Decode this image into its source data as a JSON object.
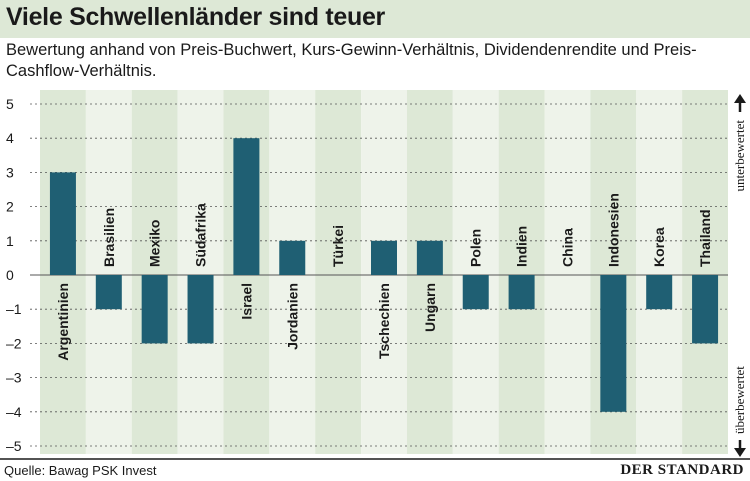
{
  "header": {
    "title": "Viele Schwellenländer sind teuer",
    "subtitle": "Bewertung anhand von Preis-Buchwert, Kurs-Gewinn-Verhältnis, Dividendenrendite und Preis-Cashflow-Verhältnis."
  },
  "footer": {
    "source": "Quelle: Bawag PSK Invest",
    "logo": "DER STANDARD"
  },
  "colors": {
    "bar": "#1f5f73",
    "band_dark": "#dde8d6",
    "band_light": "#eef3ea",
    "title_bg": "#dde8d6"
  },
  "chart_data": {
    "type": "bar",
    "categories": [
      "Argentinien",
      "Brasilien",
      "Mexiko",
      "Südafrika",
      "Israel",
      "Jordanien",
      "Türkei",
      "Tschechien",
      "Ungarn",
      "Polen",
      "Indien",
      "China",
      "Indonesien",
      "Korea",
      "Thailand"
    ],
    "values": [
      3,
      -1,
      -2,
      -2,
      4,
      1,
      0,
      1,
      1,
      -1,
      -1,
      0,
      -4,
      -1,
      -2
    ],
    "ylim": [
      -5,
      5
    ],
    "yticks": [
      5,
      4,
      3,
      2,
      1,
      0,
      -1,
      -2,
      -3,
      -4,
      -5
    ],
    "annotations": {
      "top": "unterbewertet",
      "bottom": "überbewertet"
    },
    "grid": "dashed horizontal",
    "legend": "none"
  }
}
